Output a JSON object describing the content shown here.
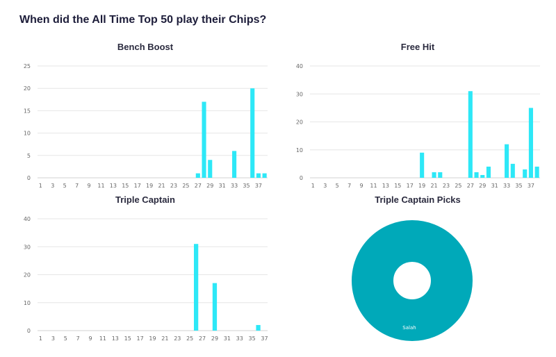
{
  "page_title": "When did the All Time Top 50 play their Chips?",
  "colors": {
    "bar": "#2de8f7",
    "pie": "#00a9b9",
    "grid": "#e6e6e6"
  },
  "chart_data": [
    {
      "type": "bar",
      "title": "Bench Boost",
      "xlabel": "",
      "ylabel": "",
      "ylim": [
        0,
        25
      ],
      "yticks": [
        0,
        5,
        10,
        15,
        20,
        25
      ],
      "x_tick_labels": [
        1,
        3,
        5,
        7,
        9,
        11,
        13,
        15,
        17,
        19,
        21,
        23,
        25,
        27,
        29,
        31,
        33,
        35,
        37
      ],
      "categories": [
        1,
        2,
        3,
        4,
        5,
        6,
        7,
        8,
        9,
        10,
        11,
        12,
        13,
        14,
        15,
        16,
        17,
        18,
        19,
        20,
        21,
        22,
        23,
        24,
        25,
        26,
        27,
        28,
        29,
        30,
        31,
        32,
        33,
        34,
        35,
        36,
        37,
        38
      ],
      "values": [
        0,
        0,
        0,
        0,
        0,
        0,
        0,
        0,
        0,
        0,
        0,
        0,
        0,
        0,
        0,
        0,
        0,
        0,
        0,
        0,
        0,
        0,
        0,
        0,
        0,
        0,
        1,
        17,
        4,
        0,
        0,
        0,
        6,
        0,
        0,
        20,
        1,
        1
      ]
    },
    {
      "type": "bar",
      "title": "Free Hit",
      "xlabel": "",
      "ylabel": "",
      "ylim": [
        0,
        40
      ],
      "yticks": [
        0,
        10,
        20,
        30,
        40
      ],
      "x_tick_labels": [
        1,
        3,
        5,
        7,
        9,
        11,
        13,
        15,
        17,
        19,
        21,
        23,
        25,
        27,
        29,
        31,
        33,
        35,
        37
      ],
      "categories": [
        1,
        2,
        3,
        4,
        5,
        6,
        7,
        8,
        9,
        10,
        11,
        12,
        13,
        14,
        15,
        16,
        17,
        18,
        19,
        20,
        21,
        22,
        23,
        24,
        25,
        26,
        27,
        28,
        29,
        30,
        31,
        32,
        33,
        34,
        35,
        36,
        37,
        38
      ],
      "values": [
        0,
        0,
        0,
        0,
        0,
        0,
        0,
        0,
        0,
        0,
        0,
        0,
        0,
        0,
        0,
        0,
        0,
        0,
        9,
        0,
        2,
        2,
        0,
        0,
        0,
        0,
        31,
        2,
        1,
        4,
        0,
        0,
        12,
        5,
        0,
        3,
        25,
        4
      ]
    },
    {
      "type": "bar",
      "title": "Triple Captain",
      "xlabel": "",
      "ylabel": "",
      "ylim": [
        0,
        40
      ],
      "yticks": [
        0,
        10,
        20,
        30,
        40
      ],
      "x_tick_labels": [
        1,
        3,
        5,
        7,
        9,
        11,
        13,
        15,
        17,
        19,
        21,
        23,
        25,
        27,
        29,
        31,
        33,
        35,
        37
      ],
      "categories": [
        1,
        2,
        3,
        4,
        5,
        6,
        7,
        8,
        9,
        10,
        11,
        12,
        13,
        14,
        15,
        16,
        17,
        18,
        19,
        20,
        21,
        22,
        23,
        24,
        25,
        26,
        27,
        28,
        29,
        30,
        31,
        32,
        33,
        34,
        35,
        36,
        37
      ],
      "values": [
        0,
        0,
        0,
        0,
        0,
        0,
        0,
        0,
        0,
        0,
        0,
        0,
        0,
        0,
        0,
        0,
        0,
        0,
        0,
        0,
        0,
        0,
        0,
        0,
        0,
        31,
        0,
        0,
        17,
        0,
        0,
        0,
        0,
        0,
        0,
        2,
        0
      ]
    },
    {
      "type": "pie",
      "title": "Triple Captain Picks",
      "slices": [
        {
          "label": "Salah",
          "value": 50
        }
      ]
    }
  ]
}
